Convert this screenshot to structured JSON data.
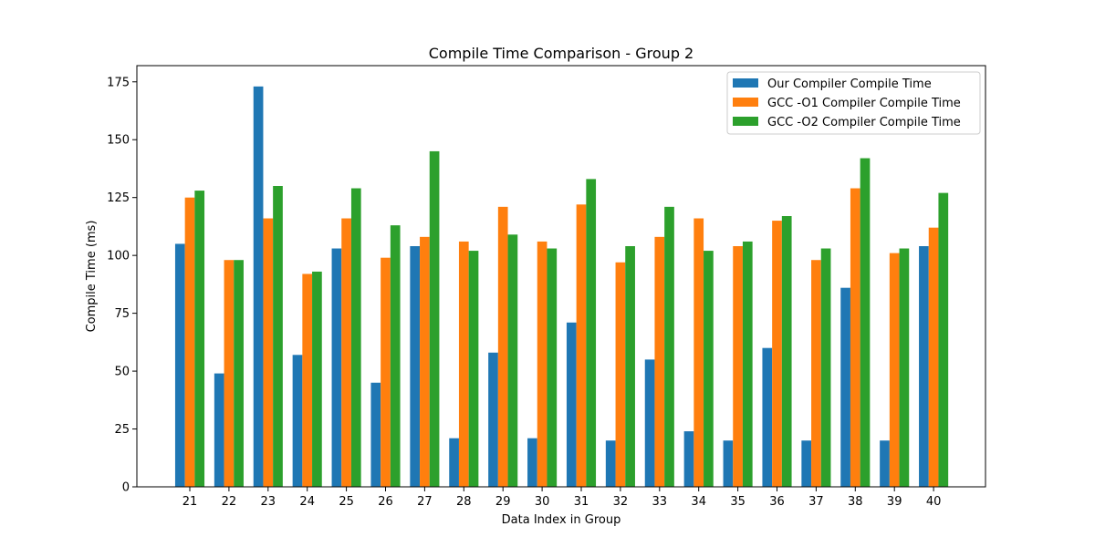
{
  "chart_data": {
    "type": "bar",
    "title": "Compile Time Comparison - Group 2",
    "xlabel": "Data Index in Group",
    "ylabel": "Compile Time (ms)",
    "ylim": [
      0,
      182
    ],
    "yticks": [
      0,
      25,
      50,
      75,
      100,
      125,
      150,
      175
    ],
    "categories": [
      "21",
      "22",
      "23",
      "24",
      "25",
      "26",
      "27",
      "28",
      "29",
      "30",
      "31",
      "32",
      "33",
      "34",
      "35",
      "36",
      "37",
      "38",
      "39",
      "40"
    ],
    "series": [
      {
        "name": "Our Compiler Compile Time",
        "color": "#1f77b4",
        "values": [
          105,
          49,
          173,
          57,
          103,
          45,
          104,
          21,
          58,
          21,
          71,
          20,
          55,
          24,
          20,
          60,
          20,
          86,
          20,
          104
        ]
      },
      {
        "name": "GCC -O1 Compiler Compile Time",
        "color": "#ff7f0e",
        "values": [
          125,
          98,
          116,
          92,
          116,
          99,
          108,
          106,
          121,
          106,
          122,
          97,
          108,
          116,
          104,
          115,
          98,
          129,
          101,
          112
        ]
      },
      {
        "name": "GCC -O2 Compiler Compile Time",
        "color": "#2ca02c",
        "values": [
          128,
          98,
          130,
          93,
          129,
          113,
          145,
          102,
          109,
          103,
          133,
          104,
          121,
          102,
          106,
          117,
          103,
          142,
          103,
          127
        ]
      }
    ],
    "legend_position": "top-right",
    "grid": false
  }
}
